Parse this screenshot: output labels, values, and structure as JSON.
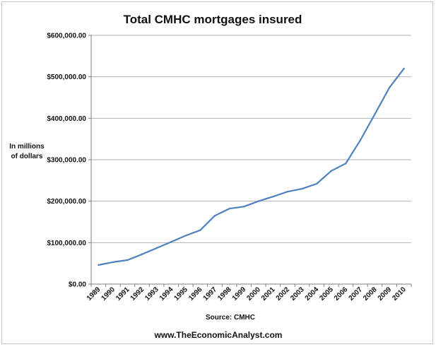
{
  "chart_data": {
    "type": "line",
    "title": "Total CMHC mortgages insured",
    "ylabel_lines": [
      "In millions",
      "of dollars"
    ],
    "xlabel": "",
    "source": "Source:  CMHC",
    "footer": "www.TheEconomicAnalyst.com",
    "x": [
      "1989",
      "1990",
      "1991",
      "1992",
      "1993",
      "1994",
      "1995",
      "1996",
      "1997",
      "1998",
      "1999",
      "2000",
      "2001",
      "2002",
      "2003",
      "2004",
      "2005",
      "2006",
      "2007",
      "2008",
      "2009",
      "2010"
    ],
    "series": [
      {
        "values": [
          46000,
          53000,
          58000,
          72000,
          87000,
          102000,
          117000,
          130000,
          165000,
          182000,
          187000,
          200000,
          211000,
          223000,
          230000,
          242000,
          273000,
          291000,
          347000,
          410000,
          474000,
          520000
        ]
      }
    ],
    "y_ticks": [
      "$0.00",
      "$100,000.00",
      "$200,000.00",
      "$300,000.00",
      "$400,000.00",
      "$500,000.00",
      "$600,000.00"
    ],
    "ylim": [
      0,
      600000
    ],
    "grid": true,
    "line_color": "#4f81bd",
    "grid_color": "#b0b0b0"
  }
}
